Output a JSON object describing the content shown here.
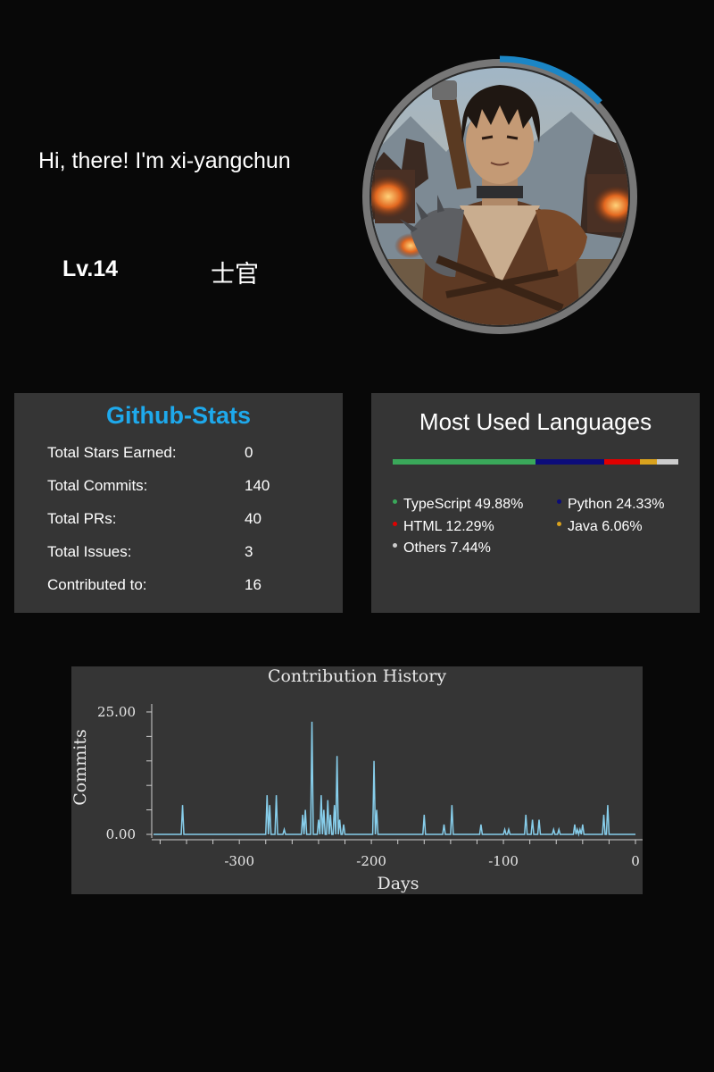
{
  "profile": {
    "greeting": "Hi, there! I'm xi-yangchun",
    "level": "Lv.14",
    "rank": "士官",
    "avatar_icon": "warrior-portrait",
    "level_progress_fraction": 0.13,
    "ring_color": "#777777",
    "progress_color": "#1b86c6"
  },
  "github_stats": {
    "title": "Github-Stats",
    "title_color": "#1ea9ec",
    "rows": [
      {
        "label": "Total Stars Earned:",
        "value": "0"
      },
      {
        "label": "Total Commits:",
        "value": "140"
      },
      {
        "label": "Total PRs:",
        "value": "40"
      },
      {
        "label": "Total Issues:",
        "value": "3"
      },
      {
        "label": "Contributed to:",
        "value": "16"
      }
    ]
  },
  "languages": {
    "title": "Most Used Languages",
    "items": [
      {
        "name": "TypeScript",
        "percent": "49.88%",
        "value": 49.88,
        "color": "#3aa85a"
      },
      {
        "name": "Python",
        "percent": "24.33%",
        "value": 24.33,
        "color": "#0c0c7a"
      },
      {
        "name": "HTML",
        "percent": "12.29%",
        "value": 12.29,
        "color": "#e00000"
      },
      {
        "name": "Java",
        "percent": "6.06%",
        "value": 6.06,
        "color": "#d9a21e"
      },
      {
        "name": "Others",
        "percent": "7.44%",
        "value": 7.44,
        "color": "#cccccc"
      }
    ]
  },
  "chart_data": {
    "type": "line",
    "title": "Contribution History",
    "xlabel": "Days",
    "ylabel": "Commits",
    "xlim": [
      -365,
      0
    ],
    "ylim": [
      0,
      27
    ],
    "x_ticks": [
      "-300",
      "-200",
      "-100",
      "0"
    ],
    "y_ticks": [
      "0.00",
      "25.00"
    ],
    "grid": false,
    "line_color": "#87ceeb",
    "series": [
      {
        "x": [
          -343,
          -279,
          -277,
          -272,
          -266,
          -252,
          -250,
          -245,
          -240,
          -238,
          -236,
          -233,
          -231,
          -228,
          -226,
          -224,
          -221,
          -198,
          -196,
          -160,
          -145,
          -139,
          -117,
          -99,
          -96,
          -83,
          -78,
          -73,
          -62,
          -58,
          -46,
          -44,
          -42,
          -40,
          -24,
          -21
        ],
        "y": [
          6,
          8,
          6,
          8,
          1,
          4,
          5,
          23,
          3,
          8,
          5,
          7,
          4,
          6,
          16,
          3,
          2,
          15,
          5,
          4,
          2,
          6,
          2,
          1,
          1,
          4,
          3,
          3,
          1,
          1,
          2,
          1,
          1,
          2,
          4,
          6
        ]
      }
    ]
  }
}
